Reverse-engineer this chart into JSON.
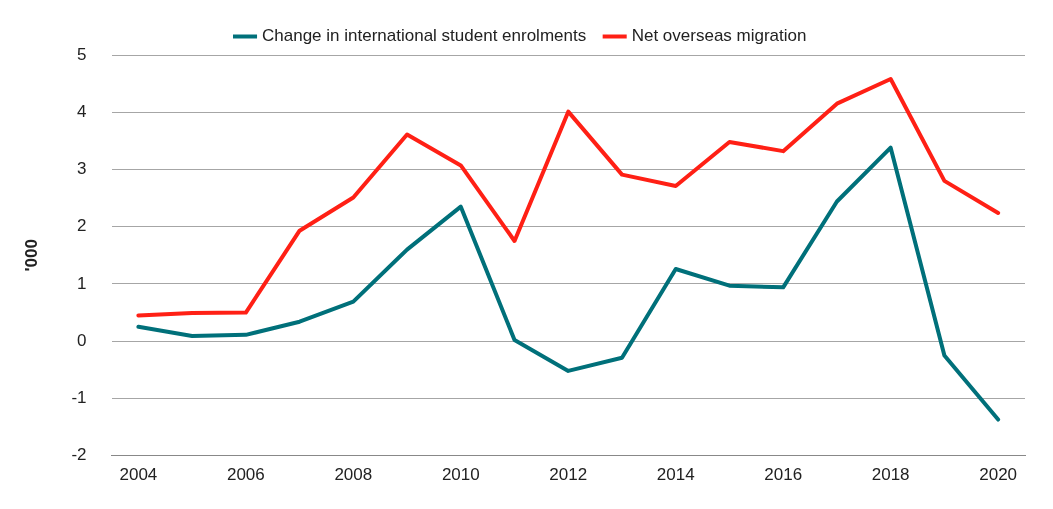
{
  "chart_data": {
    "type": "line",
    "ylabel": "'000",
    "categories": [
      "2004",
      null,
      "2006",
      null,
      "2008",
      null,
      "2010",
      null,
      "2012",
      null,
      "2014",
      null,
      "2016",
      null,
      "2018",
      null,
      "2020"
    ],
    "series": [
      {
        "name": "Change in international student enrolments",
        "color": "#00707a",
        "values": [
          0.25,
          0.09,
          0.11,
          0.34,
          0.69,
          1.6,
          2.35,
          0.02,
          -0.52,
          -0.29,
          1.26,
          0.97,
          0.94,
          2.44,
          3.38,
          -0.25,
          -1.37
        ]
      },
      {
        "name": "Net overseas migration",
        "color": "#ff2015",
        "values": [
          0.45,
          0.49,
          0.5,
          1.93,
          2.51,
          3.61,
          3.07,
          1.75,
          4.01,
          2.91,
          2.71,
          3.48,
          3.32,
          4.15,
          4.58,
          2.8,
          2.24
        ]
      }
    ],
    "ylim": [
      -2,
      5
    ],
    "yticks": [
      -2,
      -1,
      0,
      1,
      2,
      3,
      4,
      5
    ],
    "grid": "y",
    "legend": "top",
    "marker": "none",
    "line_style": "solid"
  }
}
